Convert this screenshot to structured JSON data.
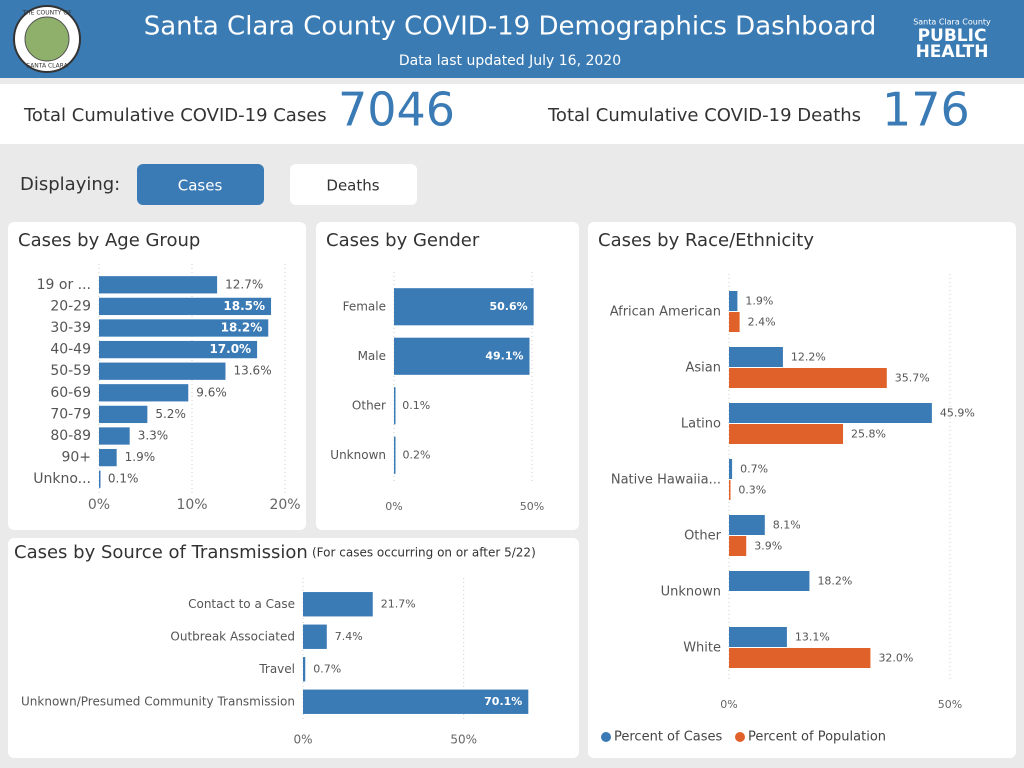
{
  "header": {
    "title": "Santa Clara County COVID-19 Demographics Dashboard",
    "subtitle": "Data last updated July 16, 2020",
    "seal_top": "THE COUNTY OF",
    "seal_bottom": "SANTA CLARA",
    "logo_top": "Santa Clara County",
    "logo_line1": "PUBLIC",
    "logo_line2": "HEALTH"
  },
  "kpis": [
    {
      "label": "Total Cumulative COVID-19 Cases",
      "value": 7046
    },
    {
      "label": "Total Cumulative COVID-19 Deaths",
      "value": 176
    }
  ],
  "filter": {
    "label": "Displaying:",
    "options": [
      "Cases",
      "Deaths"
    ],
    "selected": "Cases"
  },
  "chart_data": [
    {
      "type": "bar",
      "orientation": "horizontal",
      "title": "Cases by Age Group",
      "color": "#3a7ab5",
      "categories": [
        "19 or ...",
        "20-29",
        "30-39",
        "40-49",
        "50-59",
        "60-69",
        "70-79",
        "80-89",
        "90+",
        "Unkno..."
      ],
      "values": [
        12.7,
        18.5,
        18.2,
        17.0,
        13.6,
        9.6,
        5.2,
        3.3,
        1.9,
        0.1
      ],
      "value_labels": [
        "12.7%",
        "18.5%",
        "18.2%",
        "17.0%",
        "13.6%",
        "9.6%",
        "5.2%",
        "3.3%",
        "1.9%",
        "0.1%"
      ],
      "xlim": [
        0,
        20
      ],
      "xticks": [
        {
          "value": 0,
          "label": "0%"
        },
        {
          "value": 10,
          "label": "10%"
        },
        {
          "value": 20,
          "label": "20%"
        }
      ],
      "grid": true
    },
    {
      "type": "bar",
      "orientation": "horizontal",
      "title": "Cases by Gender",
      "color": "#3a7ab5",
      "categories": [
        "Female",
        "Male",
        "Other",
        "Unknown"
      ],
      "values": [
        50.6,
        49.1,
        0.1,
        0.2
      ],
      "value_labels": [
        "50.6%",
        "49.1%",
        "0.1%",
        "0.2%"
      ],
      "xlim": [
        0,
        50
      ],
      "xticks": [
        {
          "value": 0,
          "label": "0%"
        },
        {
          "value": 50,
          "label": "50%"
        }
      ],
      "grid": true
    },
    {
      "type": "bar",
      "orientation": "horizontal",
      "title": "Cases by Source of Transmission",
      "subtitle": "(For cases occurring on or after 5/22)",
      "color": "#3a7ab5",
      "categories": [
        "Contact to a Case",
        "Outbreak Associated",
        "Travel",
        "Unknown/Presumed Community Transmission"
      ],
      "values": [
        21.7,
        7.4,
        0.7,
        70.1
      ],
      "value_labels": [
        "21.7%",
        "7.4%",
        "0.7%",
        "70.1%"
      ],
      "xlim": [
        0,
        70
      ],
      "xticks": [
        {
          "value": 0,
          "label": "0%"
        },
        {
          "value": 50,
          "label": "50%"
        }
      ],
      "grid": true
    },
    {
      "type": "bar",
      "orientation": "horizontal",
      "title": "Cases by Race/Ethnicity",
      "categories": [
        "African American",
        "Asian",
        "Latino",
        "Native Hawaiia...",
        "Other",
        "Unknown",
        "White"
      ],
      "series": [
        {
          "name": "Percent of Cases",
          "color": "#3a7ab5",
          "values": [
            1.9,
            12.2,
            45.9,
            0.7,
            8.1,
            18.2,
            13.1
          ],
          "value_labels": [
            "1.9%",
            "12.2%",
            "45.9%",
            "0.7%",
            "8.1%",
            "18.2%",
            "13.1%"
          ]
        },
        {
          "name": "Percent of Population",
          "color": "#e0622a",
          "values": [
            2.4,
            35.7,
            25.8,
            0.3,
            3.9,
            null,
            32.0
          ],
          "value_labels": [
            "2.4%",
            "35.7%",
            "25.8%",
            "0.3%",
            "3.9%",
            null,
            "32.0%"
          ]
        }
      ],
      "xlim": [
        0,
        50
      ],
      "xticks": [
        {
          "value": 0,
          "label": "0%"
        },
        {
          "value": 50,
          "label": "50%"
        }
      ],
      "grid": true,
      "legend": "bottom"
    }
  ]
}
